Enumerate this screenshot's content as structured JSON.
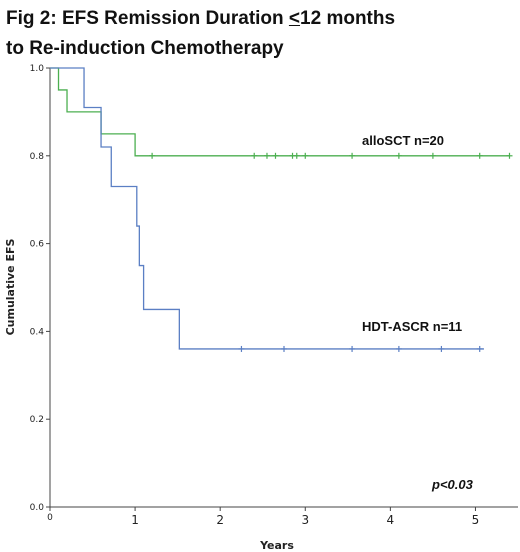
{
  "title_lines": {
    "line1_pre": "Fig 2: EFS Remission Duration ",
    "line1_le": "<",
    "line1_post": "12 months",
    "line2": "to Re-induction Chemotherapy"
  },
  "chart_data": {
    "type": "line",
    "step": true,
    "title": "Fig 2: EFS Remission Duration <12 months to Re-induction Chemotherapy",
    "xlabel": "Years",
    "ylabel": "Cumulative EFS",
    "xlim": [
      0,
      5.5
    ],
    "ylim": [
      0,
      1.0
    ],
    "x_ticks": [
      "0",
      "1",
      "2",
      "3",
      "4",
      "5"
    ],
    "x_tick_values": [
      0,
      1,
      2,
      3,
      4,
      5
    ],
    "y_ticks": [
      "0.0",
      "0.2",
      "0.4",
      "0.6",
      "0.8",
      "1.0"
    ],
    "y_tick_values": [
      0,
      0.2,
      0.4,
      0.6,
      0.8,
      1.0
    ],
    "grid": false,
    "series": [
      {
        "name": "alloSCT n=20",
        "color": "#4caf50",
        "steps": [
          [
            0,
            1.0
          ],
          [
            0.1,
            0.95
          ],
          [
            0.2,
            0.9
          ],
          [
            0.55,
            0.9
          ],
          [
            0.6,
            0.85
          ],
          [
            0.95,
            0.85
          ],
          [
            1.0,
            0.8
          ],
          [
            1.1,
            0.8
          ],
          [
            5.4,
            0.8
          ]
        ],
        "censored": [
          [
            1.2,
            0.8
          ],
          [
            2.4,
            0.8
          ],
          [
            2.55,
            0.8
          ],
          [
            2.65,
            0.8
          ],
          [
            2.85,
            0.8
          ],
          [
            2.9,
            0.8
          ],
          [
            3.0,
            0.8
          ],
          [
            3.55,
            0.8
          ],
          [
            4.1,
            0.8
          ],
          [
            4.5,
            0.8
          ],
          [
            5.05,
            0.8
          ],
          [
            5.4,
            0.8
          ]
        ]
      },
      {
        "name": "HDT-ASCR n=11",
        "color": "#5b7fc4",
        "steps": [
          [
            0,
            1.0
          ],
          [
            0.38,
            1.0
          ],
          [
            0.4,
            0.91
          ],
          [
            0.55,
            0.91
          ],
          [
            0.6,
            0.82
          ],
          [
            0.7,
            0.82
          ],
          [
            0.72,
            0.73
          ],
          [
            1.0,
            0.73
          ],
          [
            1.02,
            0.64
          ],
          [
            1.05,
            0.55
          ],
          [
            1.1,
            0.45
          ],
          [
            1.5,
            0.45
          ],
          [
            1.52,
            0.36
          ],
          [
            5.1,
            0.36
          ]
        ],
        "censored": [
          [
            2.25,
            0.36
          ],
          [
            2.75,
            0.36
          ],
          [
            3.55,
            0.36
          ],
          [
            4.1,
            0.36
          ],
          [
            4.6,
            0.36
          ],
          [
            5.05,
            0.36
          ]
        ]
      }
    ],
    "annotations": {
      "allo_label": "alloSCT n=20",
      "hdt_label": "HDT-ASCR n=11",
      "p_value": "p<0.03"
    }
  }
}
